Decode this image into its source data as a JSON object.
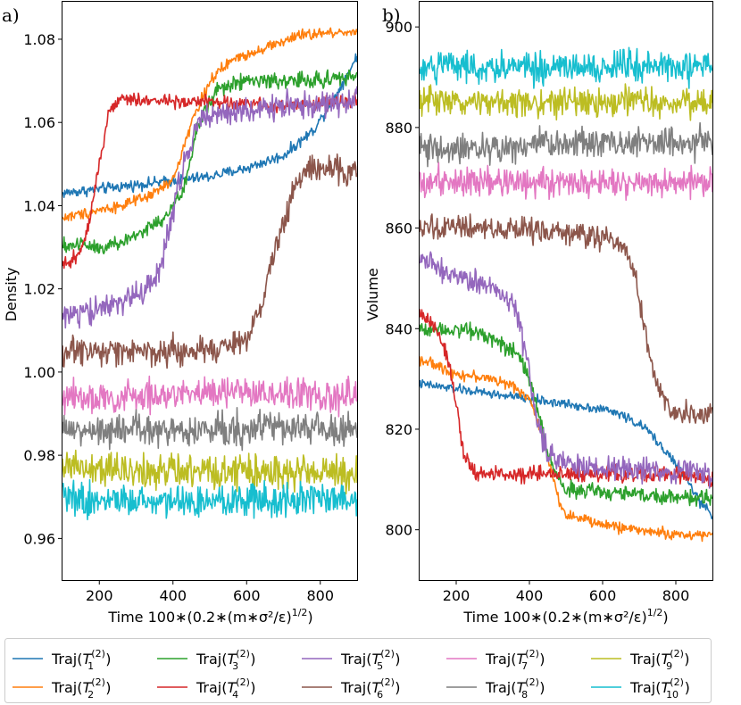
{
  "figure": {
    "legend": {
      "placement": "bottom",
      "columns": 5,
      "entries": [
        {
          "series": 0,
          "base": "Traj(",
          "sym": "T",
          "sub": "1",
          "sup": "(2)",
          "close": ")"
        },
        {
          "series": 1,
          "base": "Traj(",
          "sym": "T",
          "sub": "2",
          "sup": "(2)",
          "close": ")"
        },
        {
          "series": 2,
          "base": "Traj(",
          "sym": "T",
          "sub": "3",
          "sup": "(2)",
          "close": ")"
        },
        {
          "series": 3,
          "base": "Traj(",
          "sym": "T",
          "sub": "4",
          "sup": "(2)",
          "close": ")"
        },
        {
          "series": 4,
          "base": "Traj(",
          "sym": "T",
          "sub": "5",
          "sup": "(2)",
          "close": ")"
        },
        {
          "series": 5,
          "base": "Traj(",
          "sym": "T",
          "sub": "6",
          "sup": "(2)",
          "close": ")"
        },
        {
          "series": 6,
          "base": "Traj(",
          "sym": "T",
          "sub": "7",
          "sup": "(2)",
          "close": ")"
        },
        {
          "series": 7,
          "base": "Traj(",
          "sym": "T",
          "sub": "8",
          "sup": "(2)",
          "close": ")"
        },
        {
          "series": 8,
          "base": "Traj(",
          "sym": "T",
          "sub": "9",
          "sup": "(2)",
          "close": ")"
        },
        {
          "series": 9,
          "base": "Traj(",
          "sym": "T",
          "sub": "10",
          "sup": "(2)",
          "close": ")"
        }
      ]
    }
  },
  "chart_data": [
    {
      "type": "line",
      "panel_label": "a)",
      "ylabel": "Density",
      "xlabel": {
        "prefix": "Time 100",
        "formula": "∗(0.2∗(m∗σ²/ε)",
        "exponent": "1/2",
        "suffix": ")"
      },
      "xlim": [
        100,
        900
      ],
      "ylim": [
        0.95,
        1.089
      ],
      "xticks": [
        200,
        400,
        600,
        800
      ],
      "xtick_labels": [
        "200",
        "400",
        "600",
        "800"
      ],
      "yticks": [
        0.96,
        0.98,
        1.0,
        1.02,
        1.04,
        1.06,
        1.08
      ],
      "ytick_labels": [
        "0.96",
        "0.98",
        "1.00",
        "1.02",
        "1.04",
        "1.06",
        "1.08"
      ],
      "grid": false,
      "noise_note": "traces are noisy; values below are the smoothed trend",
      "series": [
        {
          "color": "#1f77b4",
          "noise": 0.001,
          "points": [
            [
              100,
              1.043
            ],
            [
              200,
              1.044
            ],
            [
              300,
              1.045
            ],
            [
              400,
              1.046
            ],
            [
              500,
              1.047
            ],
            [
              600,
              1.049
            ],
            [
              700,
              1.052
            ],
            [
              780,
              1.058
            ],
            [
              840,
              1.066
            ],
            [
              900,
              1.076
            ]
          ]
        },
        {
          "color": "#ff7f0e",
          "noise": 0.001,
          "points": [
            [
              100,
              1.037
            ],
            [
              150,
              1.038
            ],
            [
              200,
              1.039
            ],
            [
              260,
              1.04
            ],
            [
              330,
              1.042
            ],
            [
              400,
              1.046
            ],
            [
              450,
              1.06
            ],
            [
              500,
              1.07
            ],
            [
              560,
              1.075
            ],
            [
              650,
              1.078
            ],
            [
              750,
              1.081
            ],
            [
              900,
              1.082
            ]
          ]
        },
        {
          "color": "#2ca02c",
          "noise": 0.0015,
          "points": [
            [
              100,
              1.03
            ],
            [
              150,
              1.031
            ],
            [
              200,
              1.03
            ],
            [
              260,
              1.031
            ],
            [
              320,
              1.034
            ],
            [
              380,
              1.037
            ],
            [
              430,
              1.044
            ],
            [
              470,
              1.06
            ],
            [
              520,
              1.068
            ],
            [
              600,
              1.07
            ],
            [
              750,
              1.07
            ],
            [
              900,
              1.071
            ]
          ]
        },
        {
          "color": "#d62728",
          "noise": 0.0012,
          "points": [
            [
              100,
              1.025
            ],
            [
              140,
              1.028
            ],
            [
              170,
              1.035
            ],
            [
              200,
              1.05
            ],
            [
              225,
              1.062
            ],
            [
              260,
              1.066
            ],
            [
              350,
              1.065
            ],
            [
              500,
              1.065
            ],
            [
              700,
              1.064
            ],
            [
              900,
              1.065
            ]
          ]
        },
        {
          "color": "#9467bd",
          "noise": 0.0025,
          "points": [
            [
              100,
              1.013
            ],
            [
              200,
              1.015
            ],
            [
              260,
              1.017
            ],
            [
              320,
              1.019
            ],
            [
              360,
              1.023
            ],
            [
              390,
              1.035
            ],
            [
              430,
              1.05
            ],
            [
              470,
              1.06
            ],
            [
              520,
              1.062
            ],
            [
              700,
              1.064
            ],
            [
              900,
              1.065
            ]
          ]
        },
        {
          "color": "#8c564b",
          "noise": 0.0025,
          "points": [
            [
              100,
              1.005
            ],
            [
              300,
              1.005
            ],
            [
              500,
              1.005
            ],
            [
              600,
              1.008
            ],
            [
              640,
              1.015
            ],
            [
              680,
              1.03
            ],
            [
              720,
              1.042
            ],
            [
              760,
              1.048
            ],
            [
              820,
              1.049
            ],
            [
              900,
              1.048
            ]
          ]
        },
        {
          "color": "#e377c2",
          "noise": 0.003,
          "points": [
            [
              100,
              0.994
            ],
            [
              300,
              0.994
            ],
            [
              500,
              0.995
            ],
            [
              700,
              0.995
            ],
            [
              900,
              0.994
            ]
          ]
        },
        {
          "color": "#7f7f7f",
          "noise": 0.003,
          "points": [
            [
              100,
              0.986
            ],
            [
              300,
              0.986
            ],
            [
              500,
              0.986
            ],
            [
              700,
              0.987
            ],
            [
              900,
              0.986
            ]
          ]
        },
        {
          "color": "#bcbd22",
          "noise": 0.003,
          "points": [
            [
              100,
              0.977
            ],
            [
              300,
              0.976
            ],
            [
              500,
              0.976
            ],
            [
              700,
              0.976
            ],
            [
              900,
              0.976
            ]
          ]
        },
        {
          "color": "#17becf",
          "noise": 0.003,
          "points": [
            [
              100,
              0.97
            ],
            [
              300,
              0.969
            ],
            [
              500,
              0.969
            ],
            [
              700,
              0.969
            ],
            [
              900,
              0.969
            ]
          ]
        }
      ]
    },
    {
      "type": "line",
      "panel_label": "b)",
      "ylabel": "Volume",
      "xlabel": {
        "prefix": "Time 100",
        "formula": "∗(0.2∗(m∗σ²/ε)",
        "exponent": "1/2",
        "suffix": ")"
      },
      "xlim": [
        100,
        900
      ],
      "ylim": [
        790,
        905
      ],
      "xticks": [
        200,
        400,
        600,
        800
      ],
      "xtick_labels": [
        "200",
        "400",
        "600",
        "800"
      ],
      "yticks": [
        800,
        820,
        840,
        860,
        880,
        900
      ],
      "ytick_labels": [
        "800",
        "820",
        "840",
        "860",
        "880",
        "900"
      ],
      "grid": false,
      "noise_note": "traces are noisy; values below are the smoothed trend",
      "series": [
        {
          "color": "#1f77b4",
          "noise": 0.7,
          "points": [
            [
              100,
              829
            ],
            [
              200,
              828
            ],
            [
              300,
              827
            ],
            [
              400,
              826
            ],
            [
              500,
              825
            ],
            [
              600,
              824
            ],
            [
              650,
              823
            ],
            [
              720,
              820
            ],
            [
              780,
              815
            ],
            [
              830,
              810
            ],
            [
              870,
              805
            ],
            [
              900,
              803
            ]
          ]
        },
        {
          "color": "#ff7f0e",
          "noise": 0.8,
          "points": [
            [
              100,
              834
            ],
            [
              200,
              831
            ],
            [
              300,
              830
            ],
            [
              370,
              828
            ],
            [
              400,
              826
            ],
            [
              430,
              820
            ],
            [
              460,
              812
            ],
            [
              480,
              806
            ],
            [
              500,
              803
            ],
            [
              600,
              801
            ],
            [
              700,
              800
            ],
            [
              800,
              799
            ],
            [
              900,
              799
            ]
          ]
        },
        {
          "color": "#2ca02c",
          "noise": 1.2,
          "points": [
            [
              100,
              840
            ],
            [
              200,
              840
            ],
            [
              280,
              839
            ],
            [
              350,
              836
            ],
            [
              390,
              832
            ],
            [
              420,
              825
            ],
            [
              450,
              815
            ],
            [
              480,
              810
            ],
            [
              500,
              808
            ],
            [
              700,
              807
            ],
            [
              900,
              806
            ]
          ]
        },
        {
          "color": "#d62728",
          "noise": 1.2,
          "points": [
            [
              100,
              843
            ],
            [
              150,
              840
            ],
            [
              180,
              833
            ],
            [
              200,
              825
            ],
            [
              220,
              815
            ],
            [
              250,
              811
            ],
            [
              400,
              811
            ],
            [
              600,
              811
            ],
            [
              800,
              811
            ],
            [
              900,
              810
            ]
          ]
        },
        {
          "color": "#9467bd",
          "noise": 1.8,
          "points": [
            [
              100,
              854
            ],
            [
              200,
              850
            ],
            [
              300,
              848
            ],
            [
              360,
              845
            ],
            [
              390,
              835
            ],
            [
              420,
              822
            ],
            [
              450,
              815
            ],
            [
              500,
              813
            ],
            [
              700,
              812
            ],
            [
              900,
              811
            ]
          ]
        },
        {
          "color": "#8c564b",
          "noise": 1.8,
          "points": [
            [
              100,
              860
            ],
            [
              300,
              860
            ],
            [
              500,
              859
            ],
            [
              620,
              858
            ],
            [
              660,
              856
            ],
            [
              690,
              850
            ],
            [
              720,
              838
            ],
            [
              750,
              828
            ],
            [
              800,
              823
            ],
            [
              900,
              823
            ]
          ]
        },
        {
          "color": "#e377c2",
          "noise": 2.3,
          "points": [
            [
              100,
              869
            ],
            [
              300,
              869
            ],
            [
              500,
              869
            ],
            [
              700,
              869
            ],
            [
              900,
              869
            ]
          ]
        },
        {
          "color": "#7f7f7f",
          "noise": 2.3,
          "points": [
            [
              100,
              876
            ],
            [
              300,
              876
            ],
            [
              500,
              877
            ],
            [
              700,
              877
            ],
            [
              900,
              877
            ]
          ]
        },
        {
          "color": "#bcbd22",
          "noise": 2.3,
          "points": [
            [
              100,
              885
            ],
            [
              300,
              885
            ],
            [
              500,
              885
            ],
            [
              700,
              885
            ],
            [
              900,
              885
            ]
          ]
        },
        {
          "color": "#17becf",
          "noise": 2.3,
          "points": [
            [
              100,
              892
            ],
            [
              300,
              892
            ],
            [
              500,
              892
            ],
            [
              700,
              892
            ],
            [
              900,
              892
            ]
          ]
        }
      ]
    }
  ]
}
